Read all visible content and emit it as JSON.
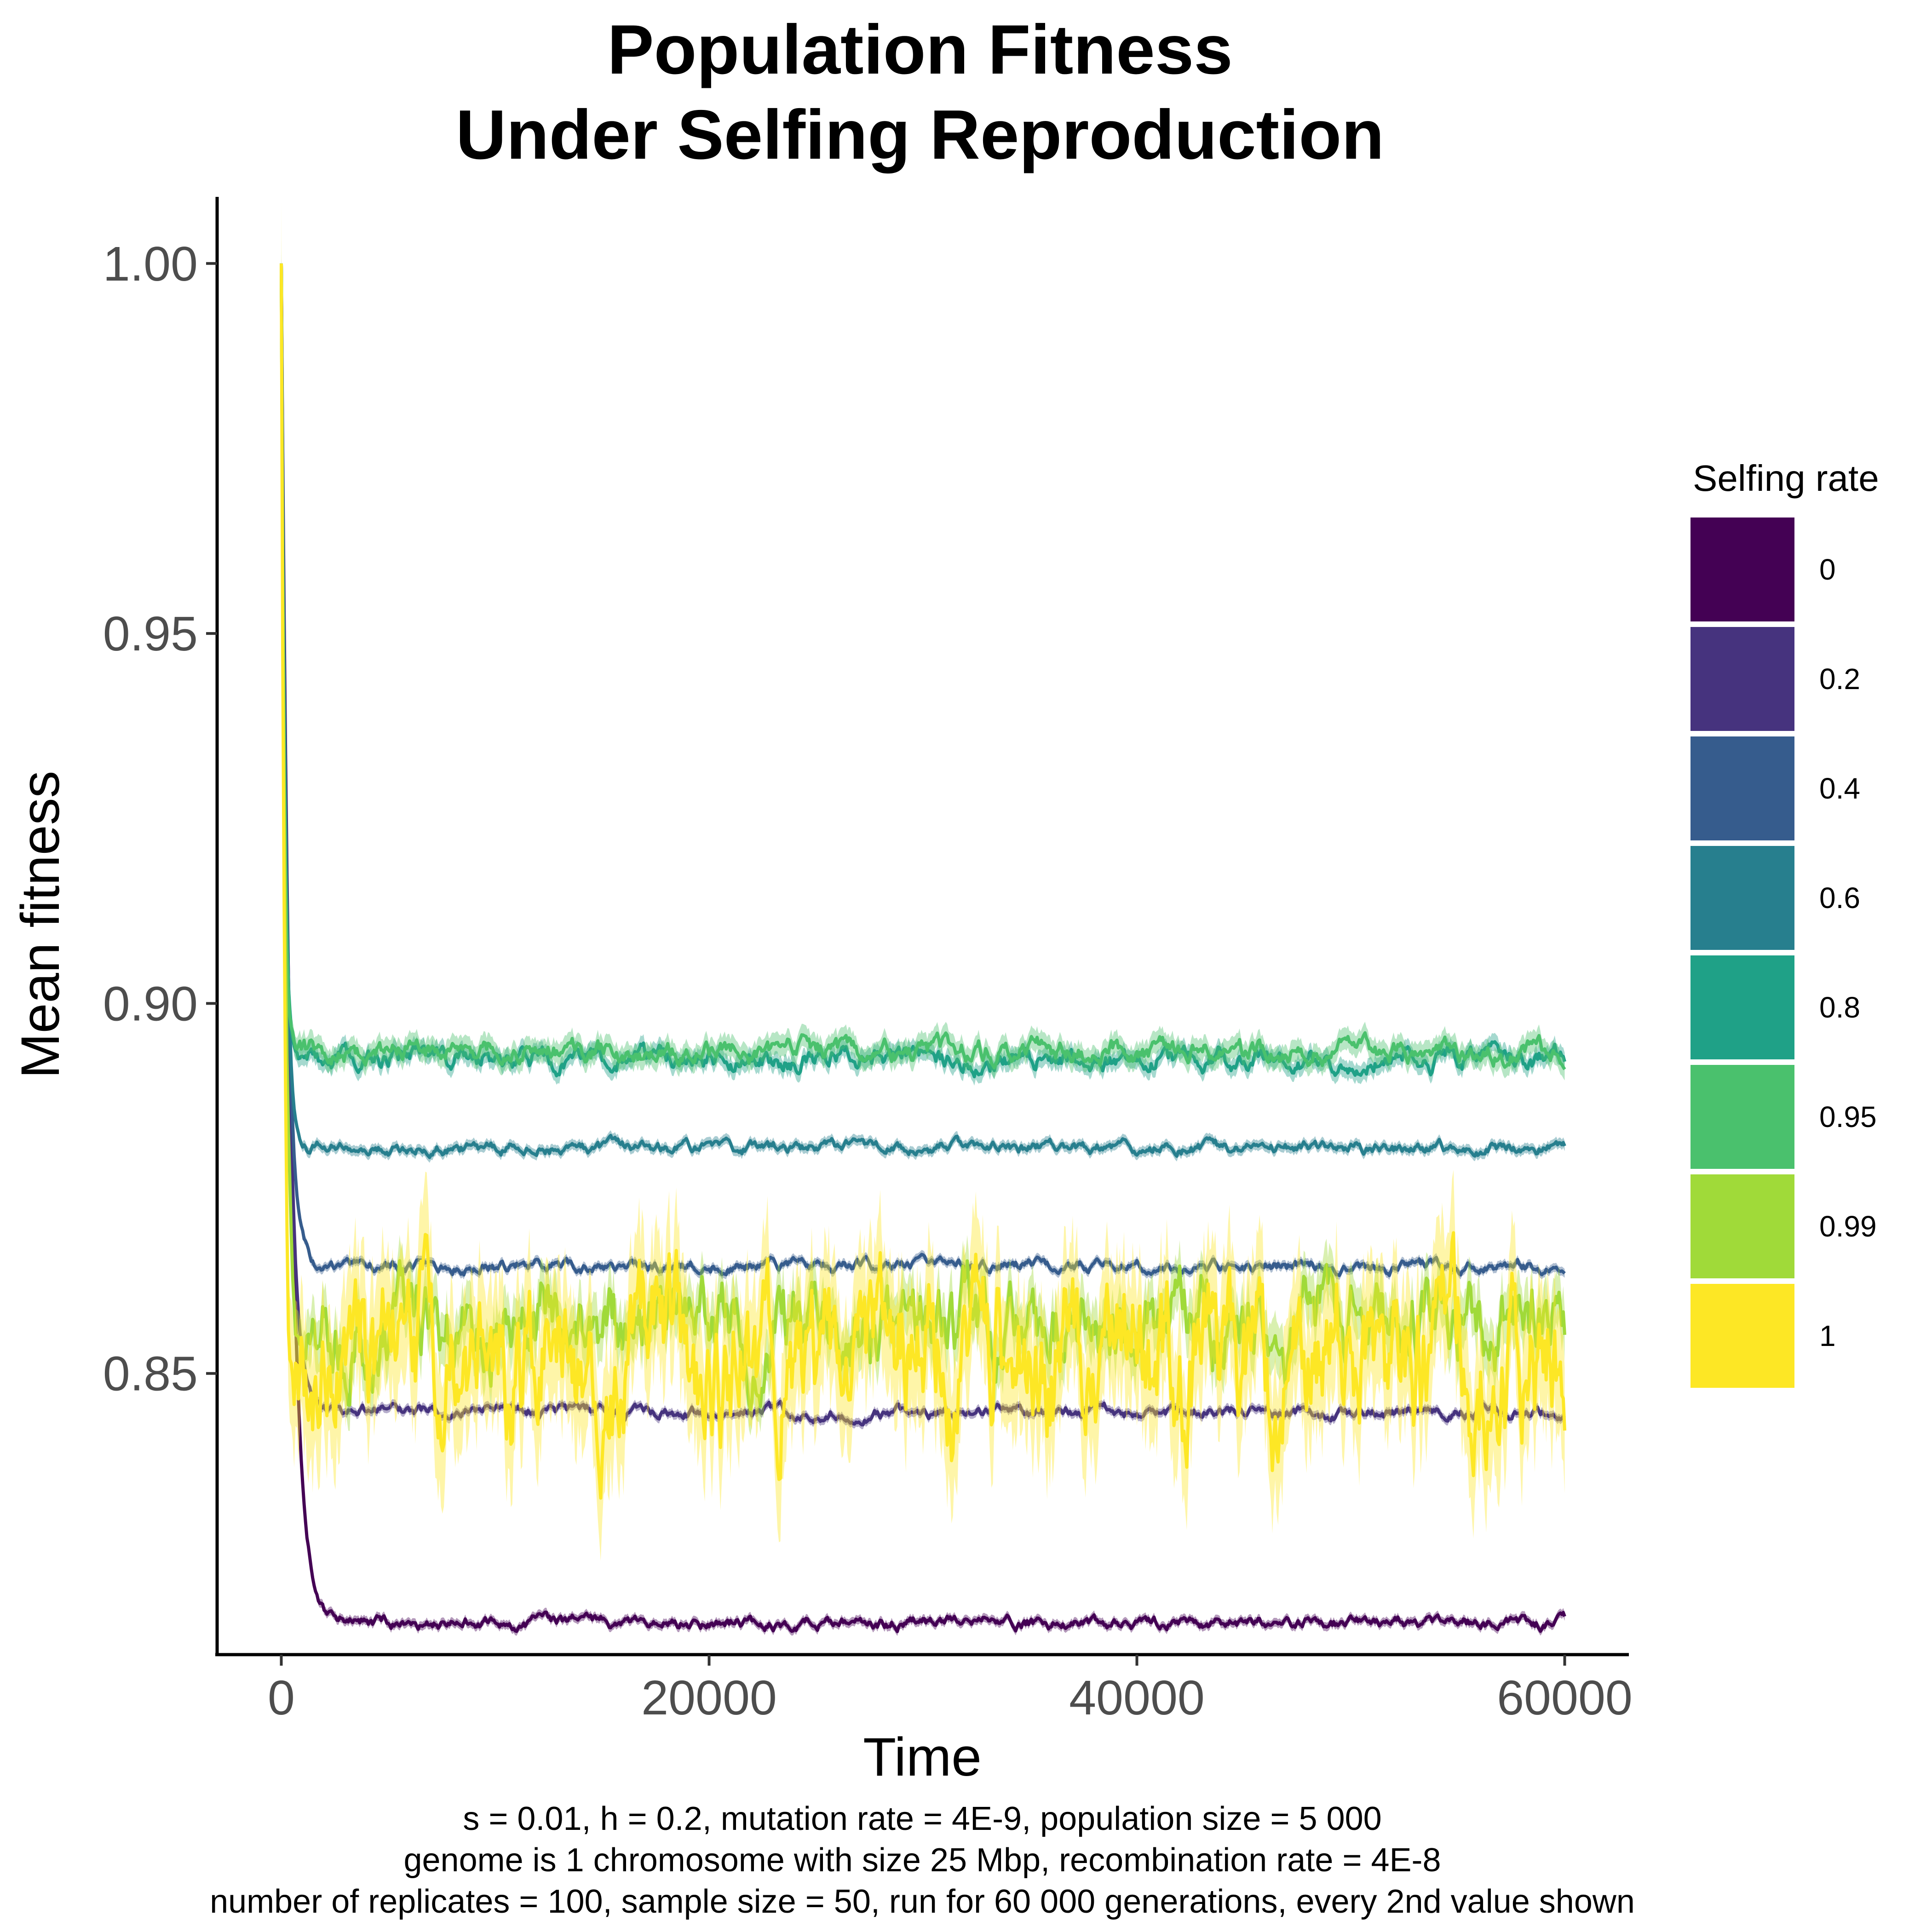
{
  "chart_data": {
    "type": "line",
    "title": [
      "Population Fitness",
      "Under Selfing Reproduction"
    ],
    "xlabel": "Time",
    "ylabel": "Mean fitness",
    "xlim": [
      -3000,
      63000
    ],
    "ylim": [
      0.812,
      1.009
    ],
    "x_ticks": [
      {
        "value": 0,
        "label": "0"
      },
      {
        "value": 20000,
        "label": "20000"
      },
      {
        "value": 40000,
        "label": "40000"
      },
      {
        "value": 60000,
        "label": "60000"
      }
    ],
    "y_ticks": [
      {
        "value": 0.85,
        "label": "0.85"
      },
      {
        "value": 0.9,
        "label": "0.90"
      },
      {
        "value": 0.95,
        "label": "0.95"
      },
      {
        "value": 1.0,
        "label": "1.00"
      }
    ],
    "grid": false,
    "legend": {
      "title": "Selfing rate",
      "position": "right"
    },
    "caption": [
      "s = 0.01, h = 0.2, mutation rate = 4E-9, population size = 5 000",
      "genome is 1 chromosome with size 25 Mbp, recombination rate = 4E-8",
      "number of replicates = 100, sample size = 50, run for 60 000 generations, every 2nd value shown"
    ],
    "series": [
      {
        "name": "0",
        "color": "#440154",
        "start": 1.0,
        "plateau": 0.8163,
        "equil_time": 2000,
        "noise": 0.0005,
        "band": 0.0006,
        "x_end": 60000
      },
      {
        "name": "0.2",
        "color": "#46337E",
        "start": 1.0,
        "plateau": 0.8448,
        "equil_time": 1500,
        "noise": 0.0005,
        "band": 0.0006,
        "x_end": 60000
      },
      {
        "name": "0.4",
        "color": "#365C8D",
        "start": 1.0,
        "plateau": 0.8645,
        "equil_time": 1200,
        "noise": 0.0005,
        "band": 0.0006,
        "x_end": 60000
      },
      {
        "name": "0.6",
        "color": "#277F8E",
        "start": 1.0,
        "plateau": 0.8805,
        "equil_time": 900,
        "noise": 0.0005,
        "band": 0.0007,
        "x_end": 60000
      },
      {
        "name": "0.8",
        "color": "#1FA187",
        "start": 1.0,
        "plateau": 0.8925,
        "equil_time": 600,
        "noise": 0.0009,
        "band": 0.0012,
        "x_end": 60000
      },
      {
        "name": "0.95",
        "color": "#4AC16D",
        "start": 1.0,
        "plateau": 0.8935,
        "equil_time": 600,
        "noise": 0.0009,
        "band": 0.0015,
        "x_end": 60000
      },
      {
        "name": "0.99",
        "color": "#A0DA39",
        "start": 1.0,
        "plateau": 0.8565,
        "equil_time": 800,
        "noise": 0.0035,
        "band": 0.0035,
        "x_end": 60000
      },
      {
        "name": "1",
        "color": "#FDE725",
        "start": 1.0,
        "plateau": 0.8525,
        "equil_time": 700,
        "noise": 0.0065,
        "band": 0.0085,
        "x_end": 60000
      }
    ]
  }
}
